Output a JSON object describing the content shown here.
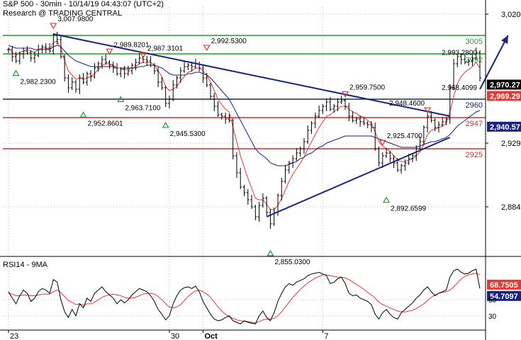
{
  "header": {
    "title": "S&P 500 - 30min - 10/14/19 04:43:07 (UTC+2)",
    "source": "Research @ TRADING CENTRAL"
  },
  "rsi_panel": {
    "label": "RSI14 - 9MA"
  },
  "chart_data": [
    {
      "type": "candlestick",
      "title": "S&P 500 - 30min - 10/14/19 04:43:07 (UTC+2)",
      "ylim": [
        2855,
        3025
      ],
      "y_ticks": [
        {
          "value": 3020,
          "label": "3,020"
        },
        {
          "value": 2970.27,
          "label": "2,970.27",
          "style": "black-badge"
        },
        {
          "value": 2969.29,
          "label": "2,969.29",
          "style": "red-badge"
        },
        {
          "value": 2940.57,
          "label": "2,940.57",
          "style": "blue-badge"
        },
        {
          "value": 2929,
          "label": "2,929"
        },
        {
          "value": 2884,
          "label": "2,884"
        }
      ],
      "x_ticks": [
        {
          "index": 0,
          "label": "23"
        },
        {
          "index": 43,
          "label": "30"
        },
        {
          "index": 52,
          "label": "Oct"
        },
        {
          "index": 84,
          "label": "7"
        }
      ],
      "levels": [
        {
          "value": 3005,
          "label": "3005",
          "color": "#1e9e2e"
        },
        {
          "value": 2992,
          "label": "2992",
          "color": "#1e9e2e"
        },
        {
          "value": 2960,
          "label": "2960",
          "color": "#1a237e"
        },
        {
          "value": 2947,
          "label": "2947",
          "color": "#d32f2f"
        },
        {
          "value": 2925,
          "label": "2925",
          "color": "#d32f2f"
        }
      ],
      "trendlines": [
        {
          "from": [
            12,
            3006
          ],
          "to": [
            118,
            2948
          ],
          "color": "#1a237e"
        },
        {
          "from": [
            69,
            2877
          ],
          "to": [
            118,
            2933
          ],
          "color": "#1a237e"
        }
      ],
      "forecast_arrow": {
        "from": [
          126,
          2967
        ],
        "to": [
          132,
          3005
        ],
        "color": "#1a237e"
      },
      "annotations": [
        {
          "x": 12,
          "y": 3007.98,
          "label": "3,007.9800",
          "marker": "down"
        },
        {
          "x": 2,
          "y": 2982.23,
          "label": "2,982.2300",
          "marker": "up"
        },
        {
          "x": 27,
          "y": 2989.82,
          "label": "2,989.8201",
          "marker": "down"
        },
        {
          "x": 36,
          "y": 2987.31,
          "label": "2,987.3101",
          "marker": "down"
        },
        {
          "x": 53,
          "y": 2992.53,
          "label": "2,992.5300",
          "marker": "down"
        },
        {
          "x": 20,
          "y": 2952.86,
          "label": "2,952.8601",
          "marker": "up"
        },
        {
          "x": 30,
          "y": 2963.71,
          "label": "2,963.7100",
          "marker": "up"
        },
        {
          "x": 42,
          "y": 2945.53,
          "label": "2,945.5300",
          "marker": "up"
        },
        {
          "x": 90,
          "y": 2959.75,
          "label": "2,959.7500",
          "marker": "down"
        },
        {
          "x": 70,
          "y": 2855.03,
          "label": "2,855.0300",
          "marker": "up"
        },
        {
          "x": 100,
          "y": 2925.47,
          "label": "2,925.4700",
          "marker": "down"
        },
        {
          "x": 101,
          "y": 2892.66,
          "label": "2,892.6599",
          "marker": "up"
        },
        {
          "x": 112,
          "y": 2948.46,
          "label": "2,948.4600",
          "marker": "down"
        },
        {
          "x": 126,
          "y": 2993.28,
          "label": "2,993.2800",
          "marker": "none"
        },
        {
          "x": 126,
          "y": 2968.41,
          "label": "2,968.4099",
          "marker": "none"
        }
      ],
      "series": [
        {
          "name": "Price",
          "kind": "close",
          "color": "#000000",
          "values": [
            2995,
            2990,
            2987,
            2992,
            2994,
            2993,
            2989,
            2991,
            2995,
            2997,
            2996,
            2994,
            3005,
            3002,
            2990,
            2975,
            2968,
            2972,
            2967,
            2975,
            2972,
            2978,
            2976,
            2982,
            2985,
            2988,
            2986,
            2984,
            2982,
            2978,
            2981,
            2978,
            2980,
            2984,
            2986,
            2989,
            2988,
            2987,
            2984,
            2980,
            2972,
            2968,
            2957,
            2960,
            2970,
            2975,
            2980,
            2983,
            2984,
            2983,
            2985,
            2982,
            2975,
            2970,
            2962,
            2955,
            2949,
            2948,
            2946,
            2945,
            2920,
            2908,
            2898,
            2894,
            2889,
            2884,
            2877,
            2885,
            2890,
            2880,
            2872,
            2880,
            2892,
            2902,
            2910,
            2915,
            2918,
            2922,
            2925,
            2930,
            2938,
            2943,
            2948,
            2952,
            2955,
            2958,
            2953,
            2955,
            2958,
            2959,
            2955,
            2948,
            2945,
            2946,
            2944,
            2943,
            2942,
            2940,
            2925,
            2915,
            2920,
            2922,
            2918,
            2915,
            2910,
            2913,
            2915,
            2918,
            2920,
            2925,
            2930,
            2940,
            2948,
            2945,
            2940,
            2942,
            2944,
            2946,
            2968,
            2985,
            2990,
            2988,
            2986,
            2987,
            2989,
            2993,
            2975
          ]
        },
        {
          "name": "MA (red)",
          "kind": "line",
          "color": "#e53935",
          "values": [
            2996,
            2993,
            2991,
            2993,
            2994,
            2995,
            2994,
            2993,
            2995,
            2996,
            2996,
            2995,
            3000,
            3001,
            2996,
            2987,
            2980,
            2977,
            2974,
            2975,
            2974,
            2975,
            2976,
            2978,
            2981,
            2984,
            2985,
            2985,
            2984,
            2982,
            2982,
            2981,
            2981,
            2982,
            2983,
            2985,
            2986,
            2986,
            2986,
            2984,
            2980,
            2976,
            2969,
            2966,
            2967,
            2969,
            2973,
            2976,
            2979,
            2980,
            2982,
            2982,
            2980,
            2977,
            2972,
            2966,
            2960,
            2956,
            2953,
            2951,
            2940,
            2930,
            2920,
            2912,
            2904,
            2897,
            2890,
            2889,
            2889,
            2886,
            2882,
            2882,
            2885,
            2890,
            2896,
            2902,
            2907,
            2911,
            2915,
            2919,
            2925,
            2930,
            2935,
            2940,
            2944,
            2948,
            2949,
            2951,
            2953,
            2955,
            2955,
            2953,
            2951,
            2950,
            2948,
            2947,
            2945,
            2943,
            2937,
            2930,
            2927,
            2925,
            2923,
            2920,
            2917,
            2916,
            2916,
            2917,
            2918,
            2920,
            2923,
            2928,
            2935,
            2938,
            2939,
            2940,
            2941,
            2943,
            2951,
            2962,
            2971,
            2976,
            2979,
            2981,
            2983,
            2986,
            2982
          ]
        },
        {
          "name": "MA (blue)",
          "kind": "line",
          "color": "#1a237e",
          "values": [
            2998,
            2997,
            2996,
            2996,
            2996,
            2996,
            2996,
            2995,
            2995,
            2995,
            2995,
            2995,
            2997,
            2998,
            2997,
            2994,
            2991,
            2989,
            2987,
            2986,
            2985,
            2984,
            2983,
            2983,
            2983,
            2983,
            2983,
            2983,
            2983,
            2982,
            2982,
            2982,
            2982,
            2982,
            2982,
            2983,
            2983,
            2984,
            2984,
            2984,
            2983,
            2982,
            2980,
            2978,
            2977,
            2977,
            2977,
            2977,
            2978,
            2978,
            2979,
            2979,
            2978,
            2977,
            2975,
            2972,
            2969,
            2966,
            2963,
            2960,
            2955,
            2950,
            2945,
            2940,
            2935,
            2930,
            2925,
            2922,
            2920,
            2918,
            2915,
            2914,
            2913,
            2913,
            2913,
            2914,
            2915,
            2916,
            2918,
            2919,
            2921,
            2922,
            2924,
            2926,
            2927,
            2929,
            2930,
            2931,
            2932,
            2933,
            2934,
            2934,
            2934,
            2934,
            2934,
            2934,
            2934,
            2934,
            2933,
            2932,
            2931,
            2930,
            2929,
            2928,
            2927,
            2926,
            2926,
            2926,
            2926,
            2926,
            2927,
            2928,
            2929,
            2930,
            2930,
            2931,
            2932,
            2933,
            2935,
            2938,
            2941,
            2943,
            2945,
            2947,
            2949,
            2951,
            2952
          ]
        }
      ]
    },
    {
      "type": "line",
      "title": "RSI14 - 9MA",
      "ylim": [
        15,
        95
      ],
      "y_ticks": [
        {
          "value": 68.7505,
          "label": "68.7505",
          "style": "red-badge"
        },
        {
          "value": 54.7097,
          "label": "54.7097",
          "style": "blue-badge"
        },
        {
          "value": 50,
          "label": "50"
        },
        {
          "value": 30,
          "label": "30"
        }
      ],
      "series": [
        {
          "name": "RSI14",
          "color": "#000000",
          "values": [
            60,
            52,
            45,
            55,
            62,
            58,
            48,
            52,
            60,
            64,
            62,
            58,
            75,
            72,
            50,
            35,
            28,
            38,
            30,
            45,
            40,
            52,
            48,
            58,
            62,
            66,
            60,
            56,
            52,
            45,
            50,
            46,
            50,
            56,
            60,
            64,
            62,
            60,
            55,
            48,
            38,
            32,
            25,
            30,
            45,
            55,
            62,
            65,
            66,
            64,
            67,
            60,
            48,
            40,
            32,
            26,
            24,
            25,
            28,
            30,
            24,
            22,
            20,
            24,
            22,
            21,
            20,
            30,
            36,
            28,
            24,
            34,
            48,
            58,
            66,
            70,
            68,
            72,
            74,
            76,
            80,
            82,
            83,
            84,
            82,
            80,
            70,
            72,
            76,
            78,
            70,
            58,
            55,
            56,
            52,
            50,
            48,
            44,
            32,
            26,
            34,
            38,
            32,
            28,
            26,
            34,
            38,
            42,
            46,
            52,
            56,
            62,
            66,
            60,
            55,
            58,
            60,
            62,
            78,
            86,
            88,
            84,
            82,
            83,
            86,
            88,
            64
          ]
        },
        {
          "name": "9MA",
          "color": "#e53935",
          "values": [
            58,
            57,
            55,
            55,
            56,
            56,
            55,
            55,
            56,
            57,
            57,
            57,
            60,
            62,
            59,
            54,
            49,
            47,
            44,
            45,
            43,
            45,
            45,
            47,
            50,
            53,
            55,
            56,
            57,
            56,
            55,
            53,
            52,
            52,
            53,
            55,
            57,
            58,
            58,
            57,
            54,
            50,
            45,
            41,
            40,
            41,
            44,
            49,
            54,
            58,
            61,
            62,
            60,
            57,
            53,
            47,
            41,
            36,
            32,
            29,
            27,
            25,
            24,
            23,
            23,
            22,
            21,
            23,
            25,
            26,
            26,
            27,
            30,
            35,
            41,
            47,
            53,
            58,
            63,
            67,
            71,
            74,
            77,
            79,
            81,
            81,
            80,
            79,
            78,
            78,
            77,
            75,
            72,
            69,
            66,
            63,
            59,
            56,
            52,
            47,
            44,
            42,
            40,
            38,
            36,
            35,
            35,
            36,
            37,
            39,
            42,
            45,
            49,
            53,
            56,
            58,
            59,
            60,
            62,
            66,
            71,
            76,
            79,
            81,
            82,
            83,
            81
          ]
        }
      ]
    }
  ]
}
